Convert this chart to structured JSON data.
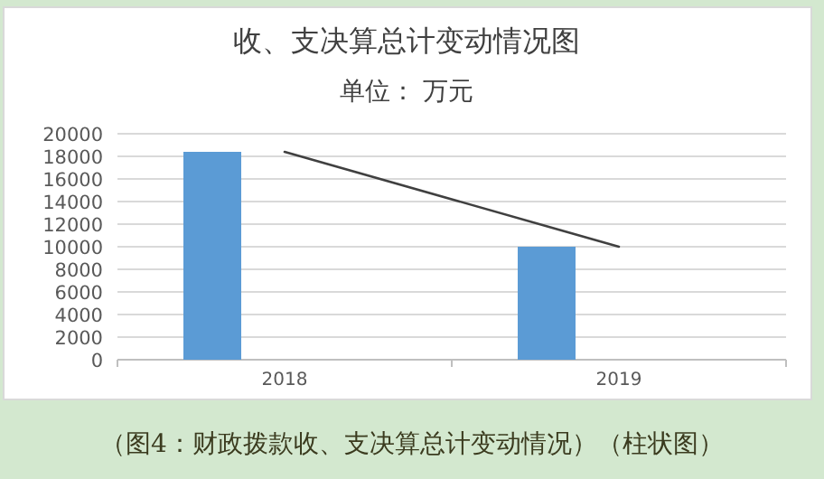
{
  "chart_data": {
    "type": "bar",
    "title": "收、支决算总计变动情况图",
    "subtitle": "单位： 万元",
    "annotations": [
      "（图4：财政拨款收、支决算总计变动情况）（柱状图）"
    ],
    "categories": [
      "2018",
      "2019"
    ],
    "series": [
      {
        "color": "#5b9bd5",
        "values": [
          18400,
          10000
        ]
      },
      {
        "type": "line",
        "color": "#404040",
        "values": [
          18400,
          10000
        ]
      }
    ],
    "ylim": [
      0,
      20000
    ],
    "yticks": [
      0,
      2000,
      4000,
      6000,
      8000,
      10000,
      12000,
      14000,
      16000,
      18000,
      20000
    ],
    "grid": "y"
  }
}
